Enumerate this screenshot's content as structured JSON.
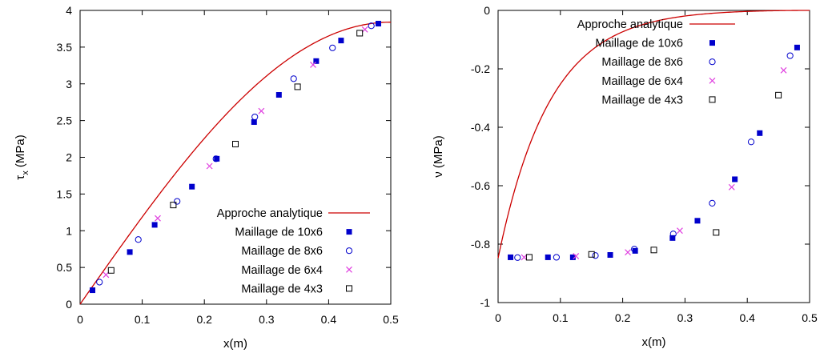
{
  "chart_data": [
    {
      "type": "line",
      "xlabel": "x(m)",
      "ylabel": "τx (MPa)",
      "ylabel_main": "τ",
      "ylabel_sub": "x",
      "ylabel_unit": "(MPa)",
      "xlim": [
        0,
        0.5
      ],
      "ylim": [
        0,
        4
      ],
      "xticks": [
        "0",
        "0.1",
        "0.2",
        "0.3",
        "0.4",
        "0.5"
      ],
      "yticks": [
        "0",
        "0.5",
        "1",
        "1.5",
        "2",
        "2.5",
        "3",
        "3.5",
        "4"
      ],
      "legend_position": "bottom-right",
      "analytic_curve": "sine",
      "analytic_amplitude": 3.84,
      "series": [
        {
          "name": "Approche analytique",
          "marker": "line",
          "color": "#cc0000"
        },
        {
          "name": "Maillage de 10x6",
          "marker": "filled-square",
          "color": "#0000cc",
          "x": [
            0.02,
            0.08,
            0.12,
            0.18,
            0.22,
            0.28,
            0.32,
            0.38,
            0.42,
            0.48
          ],
          "y": [
            0.19,
            0.71,
            1.08,
            1.6,
            1.98,
            2.48,
            2.85,
            3.31,
            3.59,
            3.82
          ]
        },
        {
          "name": "Maillage de 8x6",
          "marker": "open-circle",
          "color": "#0000cc",
          "x": [
            0.0312,
            0.0937,
            0.1562,
            0.2187,
            0.2812,
            0.3437,
            0.4062,
            0.4687
          ],
          "y": [
            0.3,
            0.88,
            1.4,
            1.98,
            2.55,
            3.07,
            3.49,
            3.79
          ]
        },
        {
          "name": "Maillage de 6x4",
          "marker": "x-cross",
          "color": "#e040e0",
          "x": [
            0.0417,
            0.125,
            0.2083,
            0.2917,
            0.375,
            0.4583
          ],
          "y": [
            0.4,
            1.17,
            1.88,
            2.63,
            3.26,
            3.74
          ]
        },
        {
          "name": "Maillage de 4x3",
          "marker": "open-square",
          "color": "#000000",
          "x": [
            0.05,
            0.15,
            0.25,
            0.35,
            0.45
          ],
          "y": [
            0.46,
            1.35,
            2.18,
            2.96,
            3.69
          ]
        }
      ]
    },
    {
      "type": "line",
      "xlabel": "x(m)",
      "ylabel": "ν (MPa)",
      "ylabel_main": "ν",
      "ylabel_sub": "",
      "ylabel_unit": "(MPa)",
      "xlim": [
        0,
        0.5
      ],
      "ylim": [
        -1,
        0
      ],
      "xticks": [
        "0",
        "0.1",
        "0.2",
        "0.3",
        "0.4",
        "0.5"
      ],
      "yticks": [
        "-1",
        "-0.8",
        "-0.6",
        "-0.4",
        "-0.2",
        "0"
      ],
      "legend_position": "top-left",
      "analytic_curve": "cosh",
      "analytic_base": -0.848,
      "analytic_rate": 12,
      "series": [
        {
          "name": "Approche analytique",
          "marker": "line",
          "color": "#cc0000"
        },
        {
          "name": "Maillage de 10x6",
          "marker": "filled-square",
          "color": "#0000cc",
          "x": [
            0.02,
            0.08,
            0.12,
            0.18,
            0.22,
            0.28,
            0.32,
            0.38,
            0.42,
            0.48
          ],
          "y": [
            -0.845,
            -0.845,
            -0.845,
            -0.837,
            -0.823,
            -0.779,
            -0.72,
            -0.578,
            -0.42,
            -0.127
          ]
        },
        {
          "name": "Maillage de 8x6",
          "marker": "open-circle",
          "color": "#0000cc",
          "x": [
            0.0312,
            0.0937,
            0.1562,
            0.2187,
            0.2812,
            0.3437,
            0.4062,
            0.4687
          ],
          "y": [
            -0.846,
            -0.845,
            -0.839,
            -0.817,
            -0.765,
            -0.66,
            -0.45,
            -0.155
          ]
        },
        {
          "name": "Maillage de 6x4",
          "marker": "x-cross",
          "color": "#e040e0",
          "x": [
            0.0417,
            0.125,
            0.2083,
            0.2917,
            0.375,
            0.4583
          ],
          "y": [
            -0.845,
            -0.841,
            -0.828,
            -0.754,
            -0.605,
            -0.205
          ]
        },
        {
          "name": "Maillage de 4x3",
          "marker": "open-square",
          "color": "#000000",
          "x": [
            0.05,
            0.15,
            0.25,
            0.35,
            0.45
          ],
          "y": [
            -0.845,
            -0.835,
            -0.82,
            -0.76,
            -0.29
          ]
        }
      ]
    }
  ]
}
